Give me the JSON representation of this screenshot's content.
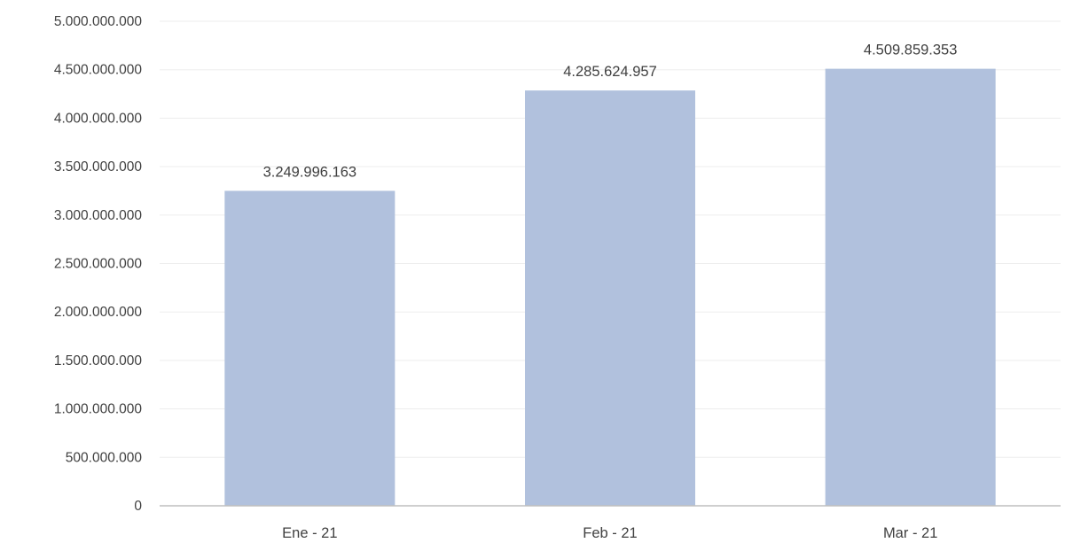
{
  "chart_data": {
    "type": "bar",
    "categories": [
      "Ene - 21",
      "Feb - 21",
      "Mar - 21"
    ],
    "values": [
      3249996163,
      4285624957,
      4509859353
    ],
    "data_labels": [
      "3.249.996.163",
      "4.285.624.957",
      "4.509.859.353"
    ],
    "y_ticks": [
      {
        "value": 0,
        "label": "0"
      },
      {
        "value": 500000000,
        "label": "500.000.000"
      },
      {
        "value": 1000000000,
        "label": "1.000.000.000"
      },
      {
        "value": 1500000000,
        "label": "1.500.000.000"
      },
      {
        "value": 2000000000,
        "label": "2.000.000.000"
      },
      {
        "value": 2500000000,
        "label": "2.500.000.000"
      },
      {
        "value": 3000000000,
        "label": "3.000.000.000"
      },
      {
        "value": 3500000000,
        "label": "3.500.000.000"
      },
      {
        "value": 4000000000,
        "label": "4.000.000.000"
      },
      {
        "value": 4500000000,
        "label": "4.500.000.000"
      },
      {
        "value": 5000000000,
        "label": "5.000.000.000"
      }
    ],
    "ylim": [
      0,
      5000000000
    ],
    "title": "",
    "xlabel": "",
    "ylabel": "",
    "grid": true,
    "legend": "none",
    "colors": {
      "bar": "#b1c1dd",
      "gridline": "#ededed",
      "axis": "#bfbfbf",
      "text": "#404040"
    }
  }
}
